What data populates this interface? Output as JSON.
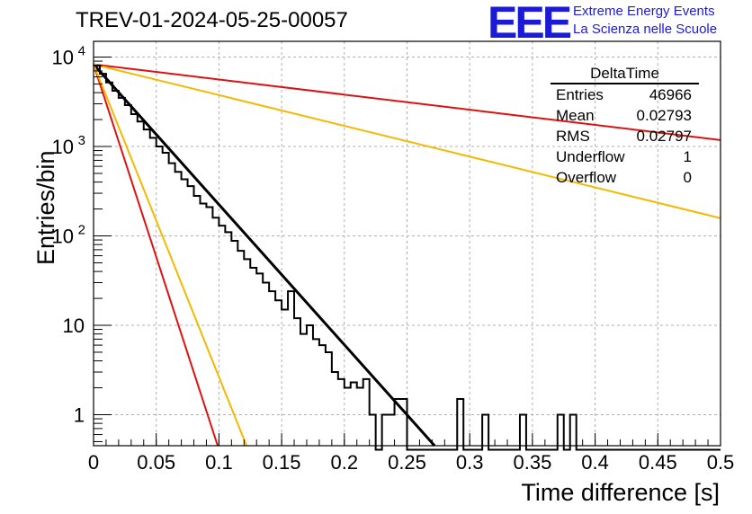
{
  "title": "TREV-01-2024-05-25-00057",
  "logo": {
    "mark": "EEE",
    "line1": "Extreme Energy Events",
    "line2": "La Scienza nelle Scuole"
  },
  "colors": {
    "histogram": "#000000",
    "fit": "#000000",
    "red": "#dd1111",
    "orange": "#f5b800",
    "logo": "#1b1bd6",
    "grid": "#b0b0b0"
  },
  "stats": {
    "title": "DeltaTime",
    "rows": [
      {
        "label": "Entries",
        "value": "46966"
      },
      {
        "label": "Mean",
        "value": "0.02793"
      },
      {
        "label": "RMS",
        "value": "0.02797"
      },
      {
        "label": "Underflow",
        "value": "1"
      },
      {
        "label": "Overflow",
        "value": "0"
      }
    ]
  },
  "chart_data": {
    "type": "line",
    "title": "TREV-01-2024-05-25-00057",
    "xlabel": "Time difference [s]",
    "ylabel": "Entries/bin",
    "xlim": [
      0,
      0.5
    ],
    "ylim": [
      0.45,
      15000
    ],
    "yscale": "log",
    "grid": true,
    "legend": "top-right stats box",
    "xticks": [
      {
        "value": 0,
        "label": "0"
      },
      {
        "value": 0.05,
        "label": "0.05"
      },
      {
        "value": 0.1,
        "label": "0.1"
      },
      {
        "value": 0.15,
        "label": "0.15"
      },
      {
        "value": 0.2,
        "label": "0.2"
      },
      {
        "value": 0.25,
        "label": "0.25"
      },
      {
        "value": 0.3,
        "label": "0.3"
      },
      {
        "value": 0.35,
        "label": "0.35"
      },
      {
        "value": 0.4,
        "label": "0.4"
      },
      {
        "value": 0.45,
        "label": "0.45"
      },
      {
        "value": 0.5,
        "label": "0.5"
      }
    ],
    "yticks": [
      {
        "value": 1,
        "label": "1",
        "sup": ""
      },
      {
        "value": 10,
        "label": "10",
        "sup": ""
      },
      {
        "value": 100,
        "label": "10",
        "sup": "2"
      },
      {
        "value": 1000,
        "label": "10",
        "sup": "3"
      },
      {
        "value": 10000,
        "label": "10",
        "sup": "4"
      }
    ],
    "histogram": {
      "name": "DeltaTime",
      "bin_width": 0.005,
      "bin_start": 0,
      "values": [
        8000,
        6500,
        5200,
        4200,
        3500,
        2900,
        2300,
        1900,
        1550,
        1250,
        1000,
        850,
        650,
        520,
        430,
        360,
        280,
        230,
        210,
        160,
        130,
        110,
        88,
        68,
        55,
        44,
        38,
        30,
        24,
        19,
        15,
        24,
        12,
        8,
        10,
        7,
        6,
        5,
        3,
        2.5,
        2,
        2.3,
        2,
        2.5,
        1,
        0.2,
        1,
        1,
        1.5,
        1.5,
        0.2,
        0.2,
        0.2,
        0.2,
        0.2,
        0.2,
        0.2,
        0.2,
        1.5,
        0.2,
        0.2,
        0.2,
        1,
        0.2,
        0.2,
        0.2,
        0.2,
        0.2,
        1,
        0.2,
        0.2,
        0.2,
        0.2,
        0.2,
        1,
        0.2,
        1,
        0.2,
        0.2,
        0.2,
        0.2,
        0.2,
        0.2,
        0.2,
        0.2,
        0.2,
        0.2,
        0.2,
        0.2,
        0.2,
        0.2,
        0.2,
        0.2,
        0.2,
        0.2,
        0.2,
        0.2,
        0.2,
        0.2,
        0.2
      ]
    },
    "series": [
      {
        "name": "exponential fit",
        "color": "#000000",
        "x": [
          0,
          0.272
        ],
        "y": [
          8300,
          0.45
        ]
      },
      {
        "name": "red steep",
        "color": "#dd1111",
        "x": [
          0,
          0.099
        ],
        "y": [
          8300,
          0.45
        ]
      },
      {
        "name": "orange steep",
        "color": "#f5b800",
        "x": [
          0,
          0.122
        ],
        "y": [
          8300,
          0.45
        ]
      },
      {
        "name": "red shallow",
        "color": "#dd1111",
        "x": [
          0,
          0.5
        ],
        "y": [
          8300,
          1180
        ]
      },
      {
        "name": "orange shallow",
        "color": "#f5b800",
        "x": [
          0,
          0.5
        ],
        "y": [
          8300,
          158
        ]
      }
    ]
  }
}
